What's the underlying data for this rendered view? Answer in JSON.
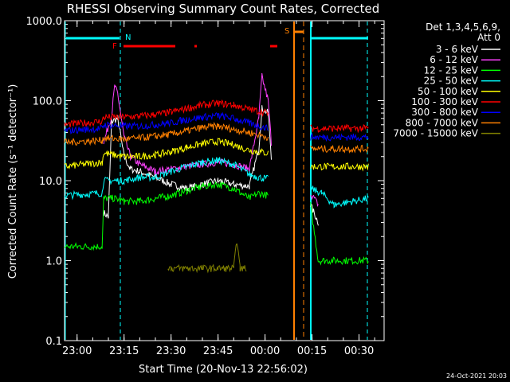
{
  "chart_data": {
    "type": "line",
    "title": "RHESSI Observing Summary Count Rates, Corrected",
    "xlabel": "Start Time (20-Nov-13 22:56:02)",
    "ylabel": "Corrected Count Rate (s⁻¹ detector⁻¹)",
    "y_scale": "log",
    "ylim": [
      0.1,
      1000
    ],
    "y_ticks": [
      "0.1",
      "1.0",
      "10.0",
      "100.0",
      "1000.0"
    ],
    "x_tick_labels": [
      "23:00",
      "23:15",
      "23:30",
      "23:45",
      "00:00",
      "00:15",
      "00:30"
    ],
    "x_tick_minutes": [
      0,
      15,
      30,
      45,
      60,
      75,
      90
    ],
    "xlim_minutes": [
      -4,
      98
    ],
    "legend_title": [
      "Det 1,3,4,5,6,9,",
      "Att 0"
    ],
    "legend_position": "right",
    "series": [
      {
        "name": "3 - 6 keV",
        "color": "#ffffff",
        "points": [
          [
            -4,
            null
          ],
          [
            8,
            null
          ],
          [
            8.5,
            4
          ],
          [
            10,
            3.5
          ],
          [
            11,
            55
          ],
          [
            13,
            60
          ],
          [
            15,
            20
          ],
          [
            17,
            14
          ],
          [
            20,
            13
          ],
          [
            25,
            11
          ],
          [
            30,
            9
          ],
          [
            35,
            8
          ],
          [
            40,
            9
          ],
          [
            45,
            10
          ],
          [
            50,
            9
          ],
          [
            55,
            8.5
          ],
          [
            58,
            25
          ],
          [
            59,
            80
          ],
          [
            61,
            70
          ],
          [
            62,
            20
          ],
          [
            63,
            null
          ],
          [
            74,
            null
          ],
          [
            74.5,
            5
          ],
          [
            77,
            3
          ]
        ]
      },
      {
        "name": "6 - 12 keV",
        "color": "#ff40ff",
        "points": [
          [
            -4,
            null
          ],
          [
            8,
            null
          ],
          [
            8.5,
            30
          ],
          [
            11,
            65
          ],
          [
            12,
            150
          ],
          [
            13,
            120
          ],
          [
            15,
            35
          ],
          [
            17,
            20
          ],
          [
            20,
            16
          ],
          [
            25,
            13
          ],
          [
            30,
            14
          ],
          [
            35,
            15
          ],
          [
            40,
            16
          ],
          [
            45,
            17
          ],
          [
            50,
            16
          ],
          [
            55,
            14
          ],
          [
            58,
            60
          ],
          [
            59,
            200
          ],
          [
            61,
            100
          ],
          [
            62,
            30
          ],
          [
            63,
            null
          ],
          [
            74,
            null
          ],
          [
            74.5,
            7
          ],
          [
            77,
            5
          ]
        ]
      },
      {
        "name": "12 - 25 keV",
        "color": "#00ff00",
        "points": [
          [
            -4,
            1.5
          ],
          [
            8,
            1.5
          ],
          [
            8.5,
            6
          ],
          [
            12,
            6
          ],
          [
            15,
            5.5
          ],
          [
            20,
            5.5
          ],
          [
            25,
            6
          ],
          [
            30,
            6.5
          ],
          [
            35,
            7.5
          ],
          [
            40,
            8.5
          ],
          [
            45,
            9
          ],
          [
            50,
            8
          ],
          [
            55,
            6
          ],
          [
            58,
            7
          ],
          [
            61,
            6.5
          ],
          [
            62,
            null
          ],
          [
            74,
            null
          ],
          [
            74.5,
            5
          ],
          [
            77,
            1
          ],
          [
            93,
            1
          ]
        ]
      },
      {
        "name": "25 - 50 keV",
        "color": "#00ffff",
        "points": [
          [
            -4,
            6.5
          ],
          [
            8,
            7
          ],
          [
            8.5,
            10
          ],
          [
            12,
            10
          ],
          [
            15,
            10
          ],
          [
            20,
            11
          ],
          [
            25,
            11
          ],
          [
            30,
            13
          ],
          [
            35,
            15
          ],
          [
            40,
            17
          ],
          [
            45,
            18
          ],
          [
            50,
            16
          ],
          [
            55,
            12
          ],
          [
            58,
            11
          ],
          [
            61,
            10.5
          ],
          [
            62,
            null
          ],
          [
            74,
            null
          ],
          [
            74.5,
            8
          ],
          [
            78,
            7
          ],
          [
            82,
            5
          ],
          [
            93,
            6
          ]
        ]
      },
      {
        "name": "50 - 100 keV",
        "color": "#ffff00",
        "points": [
          [
            -4,
            15
          ],
          [
            8,
            17
          ],
          [
            8.5,
            22
          ],
          [
            15,
            20
          ],
          [
            20,
            20
          ],
          [
            25,
            21
          ],
          [
            30,
            23
          ],
          [
            35,
            26
          ],
          [
            40,
            29
          ],
          [
            45,
            31
          ],
          [
            50,
            28
          ],
          [
            55,
            24
          ],
          [
            61,
            22
          ],
          [
            62,
            null
          ],
          [
            74,
            null
          ],
          [
            74.5,
            15
          ],
          [
            80,
            15
          ],
          [
            93,
            15
          ]
        ]
      },
      {
        "name": "100 - 300 keV",
        "color": "#ff0000",
        "points": [
          [
            -4,
            50
          ],
          [
            8,
            55
          ],
          [
            8.5,
            62
          ],
          [
            15,
            62
          ],
          [
            20,
            64
          ],
          [
            25,
            67
          ],
          [
            30,
            72
          ],
          [
            35,
            80
          ],
          [
            40,
            88
          ],
          [
            45,
            93
          ],
          [
            50,
            88
          ],
          [
            55,
            78
          ],
          [
            61,
            70
          ],
          [
            62,
            null
          ],
          [
            74,
            null
          ],
          [
            74.5,
            45
          ],
          [
            80,
            45
          ],
          [
            93,
            45
          ]
        ]
      },
      {
        "name": "300 - 800 keV",
        "color": "#0000ff",
        "points": [
          [
            -4,
            42
          ],
          [
            8,
            45
          ],
          [
            8.5,
            50
          ],
          [
            15,
            48
          ],
          [
            20,
            48
          ],
          [
            25,
            50
          ],
          [
            30,
            53
          ],
          [
            35,
            58
          ],
          [
            40,
            62
          ],
          [
            45,
            65
          ],
          [
            50,
            60
          ],
          [
            55,
            52
          ],
          [
            61,
            45
          ],
          [
            62,
            null
          ],
          [
            74,
            null
          ],
          [
            74.5,
            35
          ],
          [
            93,
            35
          ]
        ]
      },
      {
        "name": "800 - 7000 keV",
        "color": "#ff8000",
        "points": [
          [
            -4,
            30
          ],
          [
            8,
            32
          ],
          [
            8.5,
            34
          ],
          [
            15,
            33
          ],
          [
            20,
            34
          ],
          [
            25,
            36
          ],
          [
            30,
            38
          ],
          [
            35,
            42
          ],
          [
            40,
            46
          ],
          [
            45,
            48
          ],
          [
            50,
            44
          ],
          [
            55,
            40
          ],
          [
            61,
            35
          ],
          [
            62,
            null
          ],
          [
            74,
            null
          ],
          [
            74.5,
            25
          ],
          [
            93,
            25
          ]
        ]
      },
      {
        "name": "7000 - 15000 keV",
        "color": "#808000",
        "points": [
          [
            29,
            0.85
          ],
          [
            30,
            0.8
          ],
          [
            35,
            0.8
          ],
          [
            40,
            0.8
          ],
          [
            45,
            0.8
          ],
          [
            50,
            0.8
          ],
          [
            51,
            1.8
          ],
          [
            52,
            0.8
          ],
          [
            54,
            0.8
          ]
        ]
      }
    ],
    "annotations": {
      "night_flag": "N",
      "saa_flag": "S",
      "flare_flag": "F"
    }
  },
  "footer": {
    "date_stamp": "24-Oct-2021 20:03"
  }
}
